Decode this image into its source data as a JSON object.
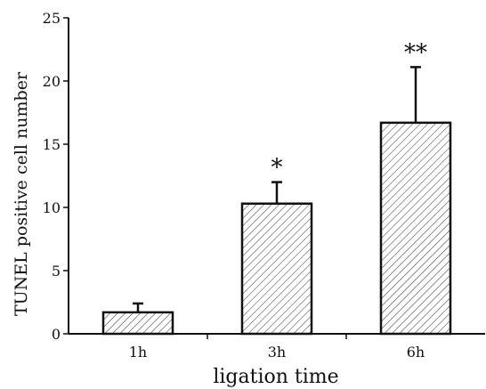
{
  "chart_data": {
    "type": "bar",
    "categories": [
      "1h",
      "3h",
      "6h"
    ],
    "values": [
      1.7,
      10.3,
      16.7
    ],
    "error_upper": [
      2.4,
      12.0,
      21.1
    ],
    "annotations": [
      "",
      "*",
      "**"
    ],
    "xlabel": "ligation time",
    "ylabel": "TUNEL positive cell number",
    "ylim": [
      0,
      25
    ],
    "yticks": [
      0,
      5,
      10,
      15,
      20,
      25
    ],
    "ytick_labels": [
      "0",
      "5",
      "10",
      "15",
      "20",
      "25"
    ],
    "bar_fill": "hatched",
    "grid": false,
    "legend": "none"
  },
  "colors": {
    "axis": "#111111",
    "bar_edge": "#111111",
    "hatch": "#333333"
  }
}
